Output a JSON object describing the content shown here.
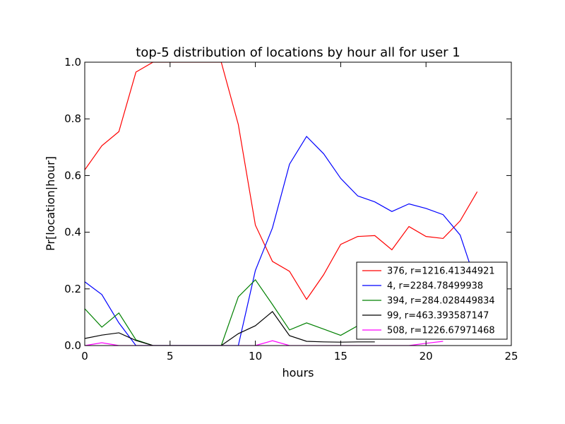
{
  "chart_data": {
    "type": "line",
    "title": "top-5 distribution of locations by hour all for user 1",
    "xlabel": "hours",
    "ylabel": "Pr[location|hour]",
    "xlim": [
      0,
      25
    ],
    "ylim": [
      0,
      1.0
    ],
    "x_ticks": [
      0,
      5,
      10,
      15,
      20,
      25
    ],
    "y_ticks": [
      0.0,
      0.2,
      0.4,
      0.6,
      0.8,
      1.0
    ],
    "x_tick_labels": [
      "0",
      "5",
      "10",
      "15",
      "20",
      "25"
    ],
    "y_tick_labels": [
      "0.0",
      "0.2",
      "0.4",
      "0.6",
      "0.8",
      "1.0"
    ],
    "grid": false,
    "legend_position": "lower-right",
    "series": [
      {
        "name": "376, r=1216.41344921",
        "color": "#ff0000",
        "x": [
          0,
          1,
          2,
          3,
          4,
          5,
          6,
          7,
          8,
          9,
          10,
          11,
          12,
          13,
          14,
          15,
          16,
          17,
          18,
          19,
          20,
          21,
          22,
          23
        ],
        "values": [
          0.62,
          0.705,
          0.755,
          0.965,
          1.0,
          1.0,
          1.0,
          1.0,
          1.0,
          0.78,
          0.425,
          0.297,
          0.262,
          0.163,
          0.25,
          0.357,
          0.385,
          0.388,
          0.338,
          0.42,
          0.385,
          0.378,
          0.44,
          0.543
        ]
      },
      {
        "name": "4, r=2284.78499938",
        "color": "#0000ff",
        "x": [
          0,
          1,
          2,
          3,
          4,
          5,
          6,
          7,
          8,
          9,
          10,
          11,
          12,
          13,
          14,
          15,
          16,
          17,
          18,
          19,
          20,
          21,
          22,
          23
        ],
        "values": [
          0.225,
          0.18,
          0.08,
          0.0,
          0.0,
          0.0,
          0.0,
          0.0,
          0.0,
          0.0,
          0.265,
          0.415,
          0.64,
          0.738,
          0.677,
          0.59,
          0.528,
          0.507,
          0.473,
          0.5,
          0.484,
          0.462,
          0.39,
          0.21
        ]
      },
      {
        "name": "394, r=284.028449834",
        "color": "#008000",
        "x": [
          0,
          1,
          2,
          3,
          4,
          5,
          6,
          7,
          8,
          9,
          10,
          11,
          12,
          13,
          14,
          15,
          16,
          17
        ],
        "values": [
          0.13,
          0.065,
          0.115,
          0.02,
          0.0,
          0.0,
          0.0,
          0.0,
          0.0,
          0.172,
          0.232,
          0.145,
          0.055,
          0.08,
          0.058,
          0.036,
          0.07,
          0.07
        ]
      },
      {
        "name": "99, r=463.393587147",
        "color": "#000000",
        "x": [
          0,
          1,
          2,
          3,
          4,
          5,
          6,
          7,
          8,
          9,
          10,
          11,
          12,
          13,
          14,
          15,
          16,
          17
        ],
        "values": [
          0.025,
          0.037,
          0.045,
          0.018,
          0.0,
          0.0,
          0.0,
          0.0,
          0.0,
          0.042,
          0.07,
          0.12,
          0.035,
          0.015,
          0.013,
          0.012,
          0.013,
          0.013
        ]
      },
      {
        "name": "508, r=1226.67971468",
        "color": "#ff00ff",
        "x": [
          0,
          1,
          2,
          3,
          4,
          5,
          6,
          7,
          8,
          9,
          10,
          11,
          12,
          13,
          14,
          15,
          16,
          17,
          18,
          19,
          20,
          21
        ],
        "values": [
          0.0,
          0.01,
          0.0,
          0.0,
          0.0,
          0.0,
          0.0,
          0.0,
          0.0,
          0.0,
          0.0,
          0.017,
          0.0,
          0.0,
          0.0,
          0.0,
          0.0,
          0.0,
          0.0,
          0.0,
          0.008,
          0.015
        ]
      }
    ]
  }
}
